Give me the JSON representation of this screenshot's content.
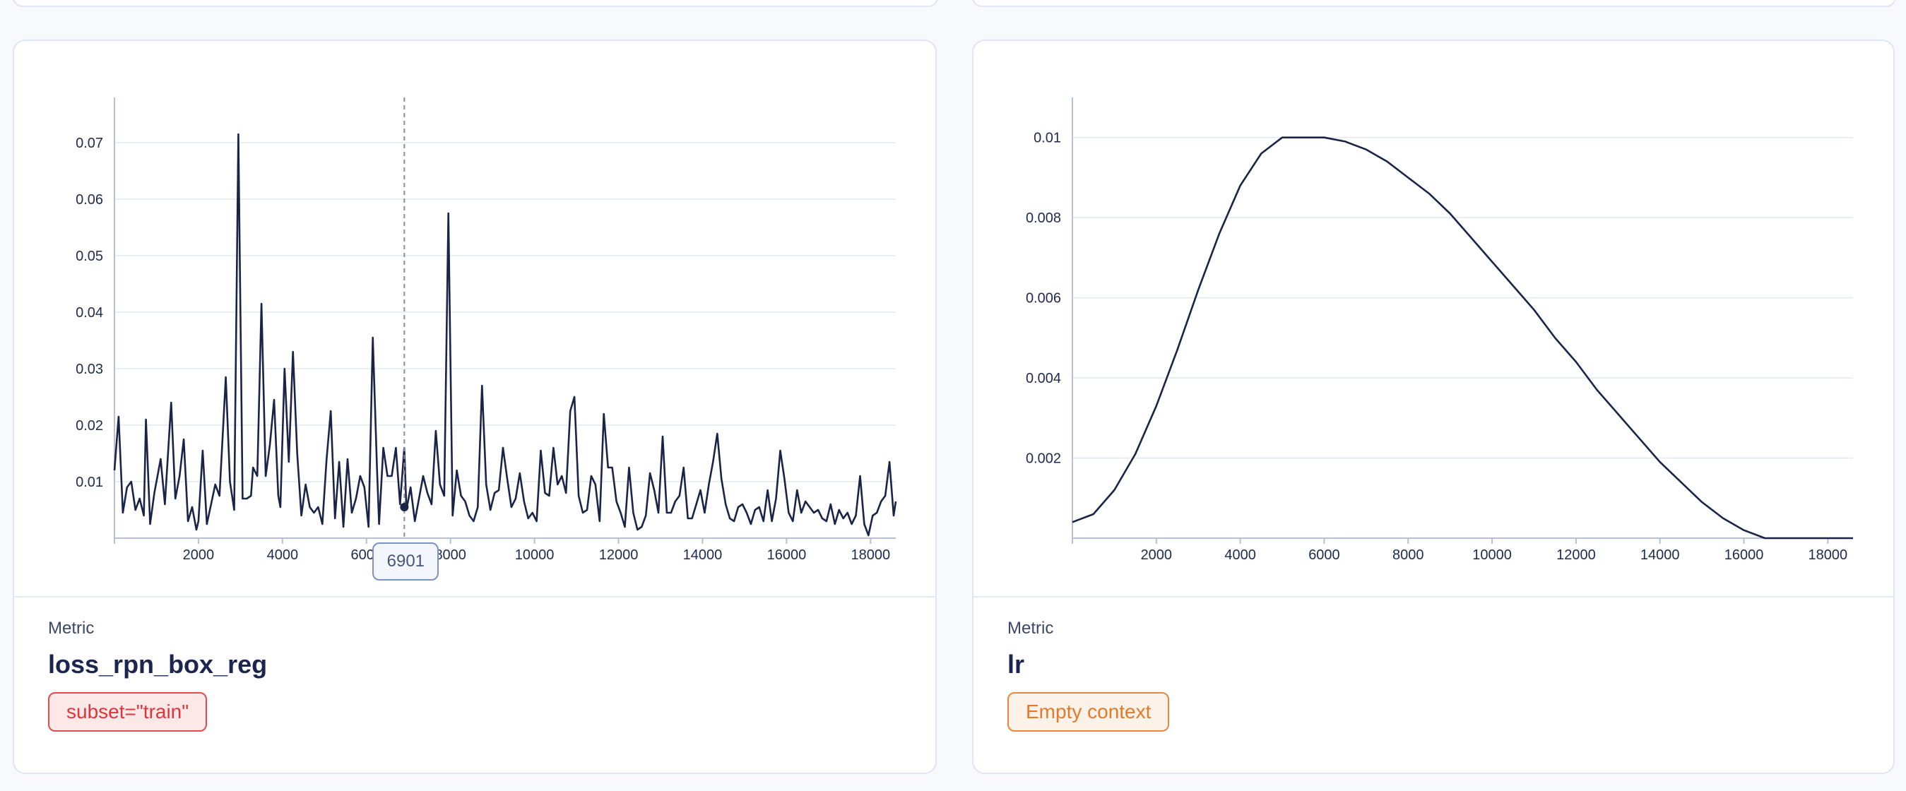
{
  "cards": [
    {
      "metric_label": "Metric",
      "metric_name": "loss_rpn_box_reg",
      "context_badge": "subset=\"train\"",
      "hover_value": "6901",
      "chart_data": {
        "type": "line",
        "title": "",
        "xlabel": "",
        "ylabel": "",
        "xlim": [
          0,
          18600
        ],
        "ylim": [
          0,
          0.078
        ],
        "xticks": [
          2000,
          4000,
          6000,
          8000,
          10000,
          12000,
          14000,
          16000,
          18000
        ],
        "yticks": [
          0.01,
          0.02,
          0.03,
          0.04,
          0.05,
          0.06,
          0.07
        ],
        "grid": true,
        "hover_x": 6901,
        "series": [
          {
            "values": [
              [
                0,
                0.012
              ],
              [
                100,
                0.0215
              ],
              [
                200,
                0.0045
              ],
              [
                300,
                0.009
              ],
              [
                400,
                0.01
              ],
              [
                500,
                0.005
              ],
              [
                600,
                0.007
              ],
              [
                700,
                0.004
              ],
              [
                750,
                0.021
              ],
              [
                850,
                0.0025
              ],
              [
                950,
                0.008
              ],
              [
                1100,
                0.014
              ],
              [
                1200,
                0.006
              ],
              [
                1350,
                0.024
              ],
              [
                1450,
                0.007
              ],
              [
                1550,
                0.011
              ],
              [
                1650,
                0.0175
              ],
              [
                1750,
                0.003
              ],
              [
                1850,
                0.0055
              ],
              [
                1950,
                0.0015
              ],
              [
                2000,
                0.003
              ],
              [
                2100,
                0.0155
              ],
              [
                2200,
                0.0025
              ],
              [
                2300,
                0.006
              ],
              [
                2400,
                0.0095
              ],
              [
                2500,
                0.0075
              ],
              [
                2650,
                0.0285
              ],
              [
                2750,
                0.01
              ],
              [
                2850,
                0.005
              ],
              [
                2950,
                0.0715
              ],
              [
                3050,
                0.007
              ],
              [
                3150,
                0.007
              ],
              [
                3250,
                0.0075
              ],
              [
                3300,
                0.0125
              ],
              [
                3400,
                0.011
              ],
              [
                3500,
                0.0415
              ],
              [
                3600,
                0.011
              ],
              [
                3700,
                0.0165
              ],
              [
                3800,
                0.0245
              ],
              [
                3900,
                0.0075
              ],
              [
                3950,
                0.0055
              ],
              [
                4050,
                0.03
              ],
              [
                4150,
                0.0135
              ],
              [
                4250,
                0.033
              ],
              [
                4350,
                0.015
              ],
              [
                4450,
                0.004
              ],
              [
                4550,
                0.0095
              ],
              [
                4650,
                0.0055
              ],
              [
                4750,
                0.0045
              ],
              [
                4850,
                0.0055
              ],
              [
                4950,
                0.0025
              ],
              [
                5050,
                0.014
              ],
              [
                5150,
                0.0225
              ],
              [
                5250,
                0.0035
              ],
              [
                5350,
                0.0135
              ],
              [
                5450,
                0.002
              ],
              [
                5550,
                0.014
              ],
              [
                5650,
                0.0045
              ],
              [
                5750,
                0.007
              ],
              [
                5850,
                0.011
              ],
              [
                5950,
                0.009
              ],
              [
                6050,
                0.002
              ],
              [
                6150,
                0.0355
              ],
              [
                6250,
                0.0125
              ],
              [
                6300,
                0.0025
              ],
              [
                6400,
                0.016
              ],
              [
                6500,
                0.011
              ],
              [
                6600,
                0.011
              ],
              [
                6700,
                0.016
              ],
              [
                6800,
                0.006
              ],
              [
                6901,
                0.016
              ],
              [
                6950,
                0.005
              ],
              [
                7050,
                0.009
              ],
              [
                7150,
                0.003
              ],
              [
                7250,
                0.007
              ],
              [
                7350,
                0.011
              ],
              [
                7450,
                0.008
              ],
              [
                7550,
                0.006
              ],
              [
                7650,
                0.019
              ],
              [
                7750,
                0.0095
              ],
              [
                7850,
                0.0075
              ],
              [
                7950,
                0.0575
              ],
              [
                8050,
                0.004
              ],
              [
                8150,
                0.012
              ],
              [
                8250,
                0.0075
              ],
              [
                8350,
                0.0065
              ],
              [
                8450,
                0.004
              ],
              [
                8550,
                0.003
              ],
              [
                8650,
                0.0055
              ],
              [
                8750,
                0.027
              ],
              [
                8850,
                0.0095
              ],
              [
                8950,
                0.005
              ],
              [
                9050,
                0.008
              ],
              [
                9150,
                0.0085
              ],
              [
                9250,
                0.016
              ],
              [
                9350,
                0.0105
              ],
              [
                9450,
                0.0055
              ],
              [
                9550,
                0.007
              ],
              [
                9650,
                0.0115
              ],
              [
                9750,
                0.0065
              ],
              [
                9850,
                0.0035
              ],
              [
                9950,
                0.0045
              ],
              [
                10050,
                0.003
              ],
              [
                10150,
                0.0155
              ],
              [
                10250,
                0.008
              ],
              [
                10350,
                0.0075
              ],
              [
                10450,
                0.016
              ],
              [
                10550,
                0.0095
              ],
              [
                10650,
                0.011
              ],
              [
                10750,
                0.008
              ],
              [
                10850,
                0.0225
              ],
              [
                10950,
                0.025
              ],
              [
                11050,
                0.0075
              ],
              [
                11150,
                0.0045
              ],
              [
                11250,
                0.005
              ],
              [
                11350,
                0.011
              ],
              [
                11450,
                0.0095
              ],
              [
                11550,
                0.003
              ],
              [
                11650,
                0.022
              ],
              [
                11750,
                0.0125
              ],
              [
                11850,
                0.0125
              ],
              [
                11950,
                0.0065
              ],
              [
                12050,
                0.0045
              ],
              [
                12150,
                0.002
              ],
              [
                12250,
                0.0125
              ],
              [
                12350,
                0.0045
              ],
              [
                12450,
                0.0015
              ],
              [
                12550,
                0.002
              ],
              [
                12650,
                0.004
              ],
              [
                12750,
                0.0115
              ],
              [
                12850,
                0.0085
              ],
              [
                12950,
                0.0045
              ],
              [
                13050,
                0.018
              ],
              [
                13150,
                0.0045
              ],
              [
                13250,
                0.0045
              ],
              [
                13350,
                0.0065
              ],
              [
                13450,
                0.0075
              ],
              [
                13550,
                0.0125
              ],
              [
                13650,
                0.0035
              ],
              [
                13750,
                0.0035
              ],
              [
                13850,
                0.006
              ],
              [
                13950,
                0.0085
              ],
              [
                14050,
                0.0045
              ],
              [
                14150,
                0.0095
              ],
              [
                14250,
                0.0135
              ],
              [
                14350,
                0.0185
              ],
              [
                14450,
                0.0105
              ],
              [
                14550,
                0.006
              ],
              [
                14650,
                0.0035
              ],
              [
                14750,
                0.003
              ],
              [
                14850,
                0.0055
              ],
              [
                14950,
                0.006
              ],
              [
                15050,
                0.0045
              ],
              [
                15150,
                0.0025
              ],
              [
                15250,
                0.005
              ],
              [
                15350,
                0.0055
              ],
              [
                15450,
                0.003
              ],
              [
                15550,
                0.0085
              ],
              [
                15650,
                0.003
              ],
              [
                15750,
                0.007
              ],
              [
                15850,
                0.0155
              ],
              [
                15950,
                0.0105
              ],
              [
                16050,
                0.0045
              ],
              [
                16150,
                0.003
              ],
              [
                16250,
                0.0085
              ],
              [
                16350,
                0.0045
              ],
              [
                16450,
                0.0065
              ],
              [
                16550,
                0.0055
              ],
              [
                16650,
                0.0045
              ],
              [
                16750,
                0.005
              ],
              [
                16850,
                0.0035
              ],
              [
                16950,
                0.003
              ],
              [
                17050,
                0.006
              ],
              [
                17150,
                0.0025
              ],
              [
                17250,
                0.005
              ],
              [
                17350,
                0.0035
              ],
              [
                17450,
                0.0045
              ],
              [
                17550,
                0.0025
              ],
              [
                17650,
                0.004
              ],
              [
                17750,
                0.011
              ],
              [
                17850,
                0.0025
              ],
              [
                17950,
                0.0005
              ],
              [
                18050,
                0.004
              ],
              [
                18150,
                0.0045
              ],
              [
                18250,
                0.0065
              ],
              [
                18350,
                0.0075
              ],
              [
                18450,
                0.0135
              ],
              [
                18550,
                0.004
              ],
              [
                18600,
                0.0065
              ]
            ]
          }
        ]
      }
    },
    {
      "metric_label": "Metric",
      "metric_name": "lr",
      "context_badge": "Empty context",
      "chart_data": {
        "type": "line",
        "title": "",
        "xlabel": "",
        "ylabel": "",
        "xlim": [
          0,
          18600
        ],
        "ylim": [
          0,
          0.011
        ],
        "xticks": [
          2000,
          4000,
          6000,
          8000,
          10000,
          12000,
          14000,
          16000,
          18000
        ],
        "yticks": [
          0.002,
          0.004,
          0.006,
          0.008,
          0.01
        ],
        "grid": true,
        "series": [
          {
            "values": [
              [
                0,
                0.0004
              ],
              [
                500,
                0.0006
              ],
              [
                1000,
                0.0012
              ],
              [
                1500,
                0.0021
              ],
              [
                2000,
                0.0033
              ],
              [
                2500,
                0.0047
              ],
              [
                3000,
                0.0062
              ],
              [
                3500,
                0.0076
              ],
              [
                4000,
                0.0088
              ],
              [
                4500,
                0.0096
              ],
              [
                5000,
                0.01
              ],
              [
                5500,
                0.01
              ],
              [
                6000,
                0.01
              ],
              [
                6500,
                0.0099
              ],
              [
                7000,
                0.0097
              ],
              [
                7500,
                0.0094
              ],
              [
                8000,
                0.009
              ],
              [
                8500,
                0.0086
              ],
              [
                9000,
                0.0081
              ],
              [
                9500,
                0.0075
              ],
              [
                10000,
                0.0069
              ],
              [
                10500,
                0.0063
              ],
              [
                11000,
                0.0057
              ],
              [
                11500,
                0.005
              ],
              [
                12000,
                0.0044
              ],
              [
                12500,
                0.0037
              ],
              [
                13000,
                0.0031
              ],
              [
                13500,
                0.0025
              ],
              [
                14000,
                0.0019
              ],
              [
                14500,
                0.0014
              ],
              [
                15000,
                0.0009
              ],
              [
                15500,
                0.0005
              ],
              [
                16000,
                0.0002
              ],
              [
                16500,
                0.0
              ],
              [
                17000,
                0.0
              ],
              [
                17500,
                0.0
              ],
              [
                18000,
                0.0
              ],
              [
                18600,
                0.0
              ]
            ]
          }
        ]
      }
    }
  ]
}
